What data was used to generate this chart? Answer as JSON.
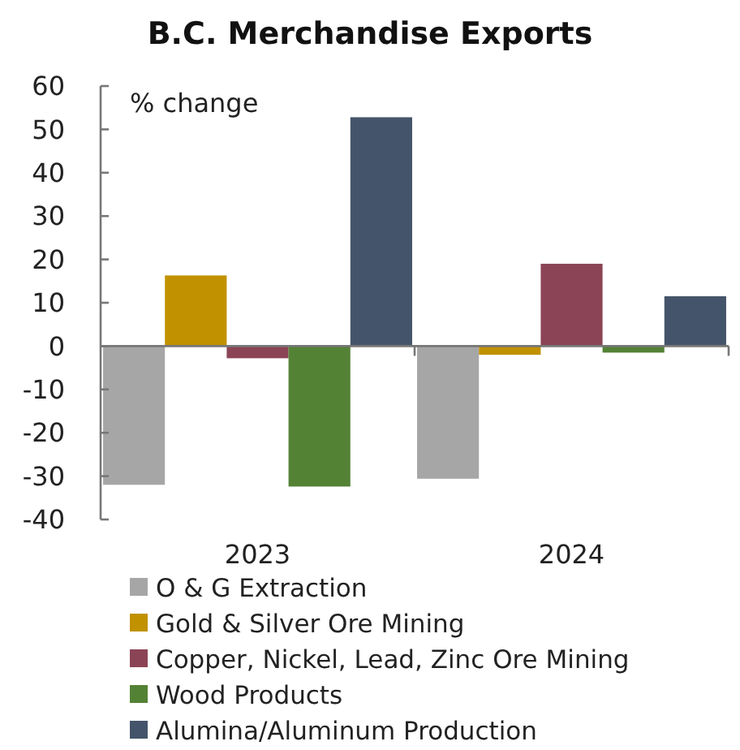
{
  "chart_data": {
    "type": "bar",
    "title": "B.C. Merchandise Exports",
    "ylabel": "% change",
    "categories": [
      "2023",
      "2024"
    ],
    "series": [
      {
        "name": "O & G Extraction",
        "color": "#a6a6a6",
        "values": [
          -32,
          -30.6
        ]
      },
      {
        "name": "Gold & Silver Ore Mining",
        "color": "#c19100",
        "values": [
          16.3,
          -2
        ]
      },
      {
        "name": "Copper, Nickel, Lead, Zinc Ore Mining",
        "color": "#8b4455",
        "values": [
          -2.8,
          19
        ]
      },
      {
        "name": "Wood Products",
        "color": "#548235",
        "values": [
          -32.4,
          -1.5
        ]
      },
      {
        "name": "Alumina/Aluminum Production",
        "color": "#44546a",
        "values": [
          52.8,
          11.5
        ]
      }
    ],
    "ylim": [
      -40,
      60
    ],
    "yticks": [
      -40,
      -30,
      -20,
      -10,
      0,
      10,
      20,
      30,
      40,
      50,
      60
    ],
    "legend": "bottom"
  }
}
